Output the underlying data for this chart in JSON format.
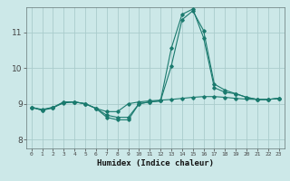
{
  "xlabel": "Humidex (Indice chaleur)",
  "bg_color": "#cce8e8",
  "line_color": "#1a7a6e",
  "grid_color": "#aacccc",
  "xlim": [
    -0.5,
    23.5
  ],
  "ylim": [
    7.75,
    11.7
  ],
  "yticks": [
    8,
    9,
    10,
    11
  ],
  "xticks": [
    0,
    1,
    2,
    3,
    4,
    5,
    6,
    7,
    8,
    9,
    10,
    11,
    12,
    13,
    14,
    15,
    16,
    17,
    18,
    19,
    20,
    21,
    22,
    23
  ],
  "series": [
    [
      8.9,
      8.82,
      8.88,
      9.05,
      9.05,
      9.0,
      8.87,
      8.78,
      8.78,
      9.0,
      9.05,
      9.08,
      9.1,
      9.12,
      9.15,
      9.18,
      9.2,
      9.2,
      9.18,
      9.15,
      9.13,
      9.12,
      9.12,
      9.15
    ],
    [
      8.9,
      8.82,
      8.9,
      9.02,
      9.05,
      9.0,
      8.87,
      8.68,
      8.62,
      8.62,
      9.0,
      9.05,
      9.08,
      10.05,
      11.35,
      11.6,
      11.05,
      9.55,
      9.38,
      9.28,
      9.18,
      9.12,
      9.12,
      9.15
    ],
    [
      8.9,
      8.84,
      8.9,
      9.05,
      9.05,
      9.0,
      8.87,
      8.62,
      8.55,
      8.55,
      9.0,
      9.05,
      9.08,
      10.55,
      11.5,
      11.65,
      10.85,
      9.45,
      9.32,
      9.28,
      9.18,
      9.12,
      9.12,
      9.15
    ]
  ]
}
